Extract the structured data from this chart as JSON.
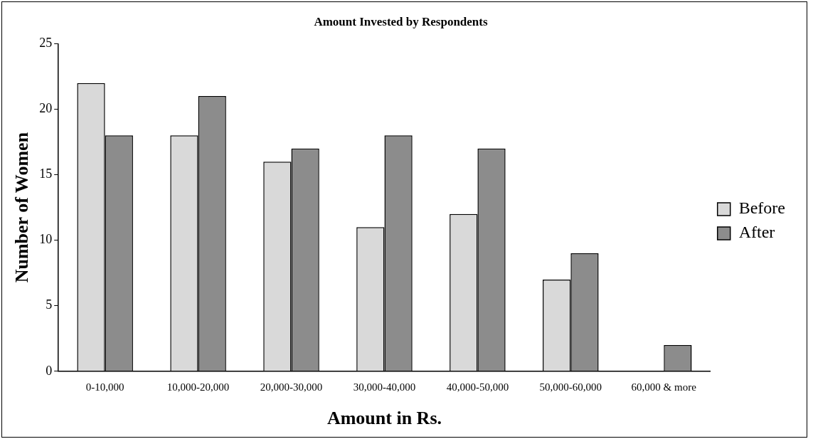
{
  "chart_data": {
    "type": "bar",
    "title": "Amount Invested by Respondents",
    "xlabel": "Amount in Rs.",
    "ylabel": "Number of Women",
    "categories": [
      "0-10,000",
      "10,000-20,000",
      "20,000-30,000",
      "30,000-40,000",
      "40,000-50,000",
      "50,000-60,000",
      "60,000 & more"
    ],
    "series": [
      {
        "name": "Before",
        "color": "#d9d9d9",
        "values": [
          22,
          18,
          16,
          11,
          12,
          7,
          0
        ]
      },
      {
        "name": "After",
        "color": "#8c8c8c",
        "values": [
          18,
          21,
          17,
          18,
          17,
          9,
          2
        ]
      }
    ],
    "ylim": [
      0,
      25
    ],
    "yticks": [
      0,
      5,
      10,
      15,
      20,
      25
    ],
    "grid": false,
    "legend": "right"
  }
}
